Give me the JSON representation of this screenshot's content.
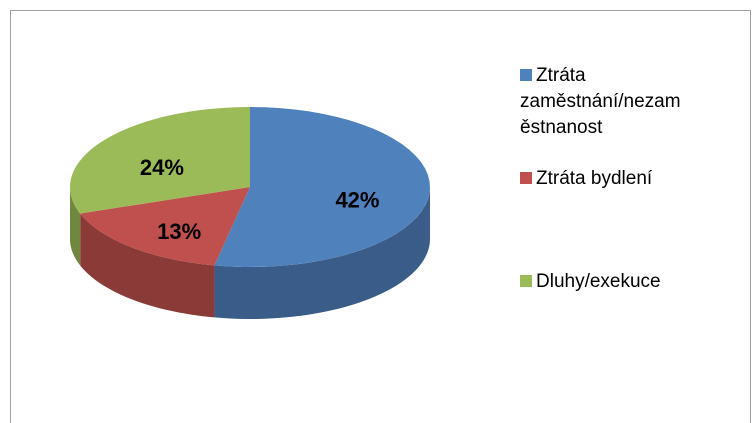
{
  "chart_data": {
    "type": "pie",
    "categories": [
      "Ztráta zaměstnání/nezaměstnanost",
      "Ztráta bydlení",
      "Dluhy/exekuce"
    ],
    "values": [
      42,
      13,
      24
    ],
    "value_labels": [
      "42%",
      "13%",
      "24%"
    ],
    "colors": [
      "#4f81bd",
      "#c0504d",
      "#9bbb59"
    ],
    "legend": "right"
  }
}
